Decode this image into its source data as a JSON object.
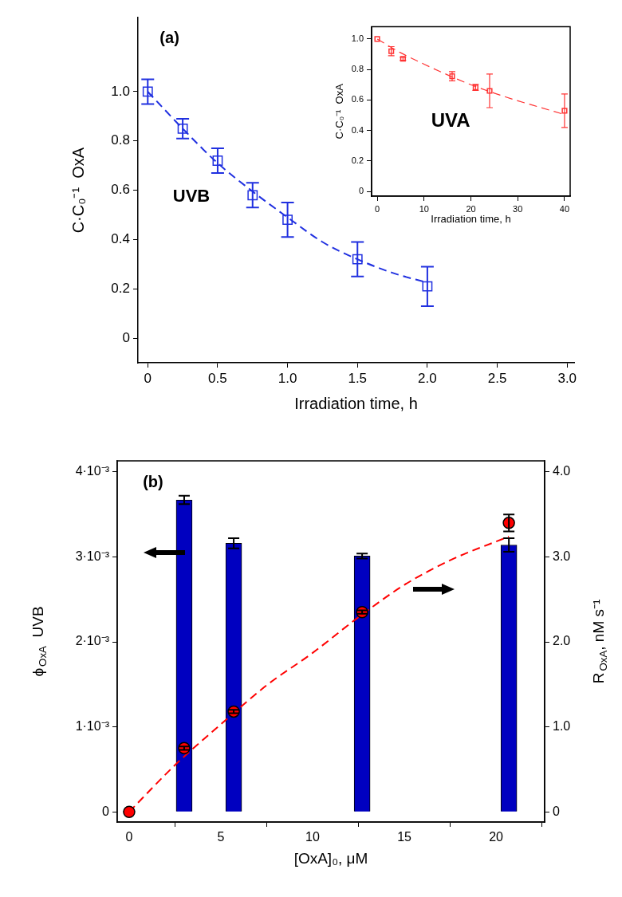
{
  "chart_data": [
    {
      "type": "scatter",
      "xlabel": "Irradiation time, h",
      "ylabel": "C·C₀⁻¹  OxA",
      "annotations": [
        "(a)",
        "UVB"
      ],
      "xlim": [
        -0.07,
        3.05
      ],
      "xticks": [
        0,
        0.5,
        {
          "value": 1,
          "label": "1.0"
        },
        1.5,
        {
          "value": 2,
          "label": "2.0"
        },
        2.5,
        {
          "value": 3,
          "label": "3.0"
        }
      ],
      "ylim": [
        -0.1,
        1.3
      ],
      "yticks": [
        0,
        0.2,
        0.4,
        0.6,
        0.8,
        {
          "value": 1,
          "label": "1.0"
        }
      ],
      "series": [
        {
          "type": "line",
          "color": "#2030e0",
          "line_style": "dashed",
          "x": [
            0,
            0.25,
            0.5,
            0.75,
            1,
            1.25,
            1.5,
            1.75,
            2
          ],
          "values": [
            1.0,
            0.85,
            0.71,
            0.595,
            0.49,
            0.39,
            0.32,
            0.265,
            0.225
          ]
        },
        {
          "color": "#2030e0",
          "marker": "square",
          "x": [
            0,
            0.25,
            0.5,
            0.75,
            1,
            1.5,
            2
          ],
          "values": [
            1.0,
            0.85,
            0.72,
            0.58,
            0.48,
            0.32,
            0.21
          ],
          "errors": [
            0.05,
            0.04,
            0.05,
            0.05,
            0.07,
            0.07,
            0.08
          ]
        }
      ]
    },
    {
      "type": "scatter",
      "xlabel": "Irradiation time, h",
      "ylabel": "C·C₀⁻¹  OxA",
      "annotations": [
        "UVA"
      ],
      "xlim": [
        -1.2,
        41.2
      ],
      "xticks": [
        0,
        10,
        20,
        30,
        40
      ],
      "ylim": [
        -0.03,
        1.08
      ],
      "yticks": [
        0,
        0.2,
        0.4,
        0.6,
        0.8,
        {
          "value": 1,
          "label": "1.0"
        }
      ],
      "series": [
        {
          "type": "line",
          "color": "#ff3333",
          "line_style": "dashed",
          "x": [
            0,
            5,
            10,
            15,
            20,
            25,
            30,
            35,
            40
          ],
          "values": [
            1.0,
            0.91,
            0.835,
            0.765,
            0.7,
            0.645,
            0.595,
            0.55,
            0.505
          ]
        },
        {
          "color": "#ff3333",
          "marker": "square",
          "x": [
            0,
            3,
            5.5,
            16,
            21,
            24,
            40
          ],
          "values": [
            1.0,
            0.92,
            0.87,
            0.756,
            0.683,
            0.66,
            0.53
          ],
          "errors": [
            null,
            0.03,
            0.01,
            0.03,
            0.02,
            0.11,
            0.11
          ]
        }
      ]
    },
    {
      "type": "bar",
      "xlabel": "[OxA]₀, μM",
      "ylabel": "ϕ$_{OxA}$  UVB",
      "y2label": "R$_{OxA}$, nM s⁻¹",
      "annotations": [
        "(b)"
      ],
      "xlim": [
        -0.65,
        22.65
      ],
      "xticks": [
        0,
        5,
        10,
        15,
        20
      ],
      "ylim": [
        -0.00012,
        0.00413
      ],
      "yticks": [
        0,
        {
          "value": 0.001,
          "label": "1·10⁻³"
        },
        {
          "value": 0.002,
          "label": "2·10⁻³"
        },
        {
          "value": 0.003,
          "label": "3·10⁻³"
        },
        {
          "value": 0.004,
          "label": "4·10⁻³"
        }
      ],
      "y2lim": [
        -0.12,
        4.13
      ],
      "y2ticks": [
        0,
        {
          "value": 1,
          "label": "1.0"
        },
        {
          "value": 2,
          "label": "2.0"
        },
        {
          "value": 3,
          "label": "3.0"
        },
        {
          "value": 4,
          "label": "4.0"
        }
      ],
      "series": [
        {
          "color": "#0000c0",
          "x": [
            3.0,
            5.7,
            12.7,
            20.7
          ],
          "values": [
            0.00367,
            0.00316,
            0.00301,
            0.00314
          ],
          "errors": [
            5e-05,
            6e-05,
            3e-05,
            8e-05
          ]
        },
        {
          "type": "line",
          "axis": "y2",
          "color": "#ff0000",
          "line_style": "dashed",
          "x": [
            0,
            2.5,
            5,
            7.5,
            10,
            12.5,
            15,
            17.5,
            20.7
          ],
          "values": [
            0,
            0.55,
            1.03,
            1.49,
            1.87,
            2.29,
            2.67,
            2.96,
            3.24
          ]
        },
        {
          "type": "scatter",
          "axis": "y2",
          "color": "#ff0000",
          "marker": "circle",
          "x": [
            0,
            3.0,
            5.7,
            12.7,
            20.7
          ],
          "values": [
            0,
            0.75,
            1.18,
            2.35,
            3.4
          ],
          "errors": [
            null,
            0.02,
            0.02,
            0.02,
            0.1
          ]
        }
      ]
    }
  ]
}
